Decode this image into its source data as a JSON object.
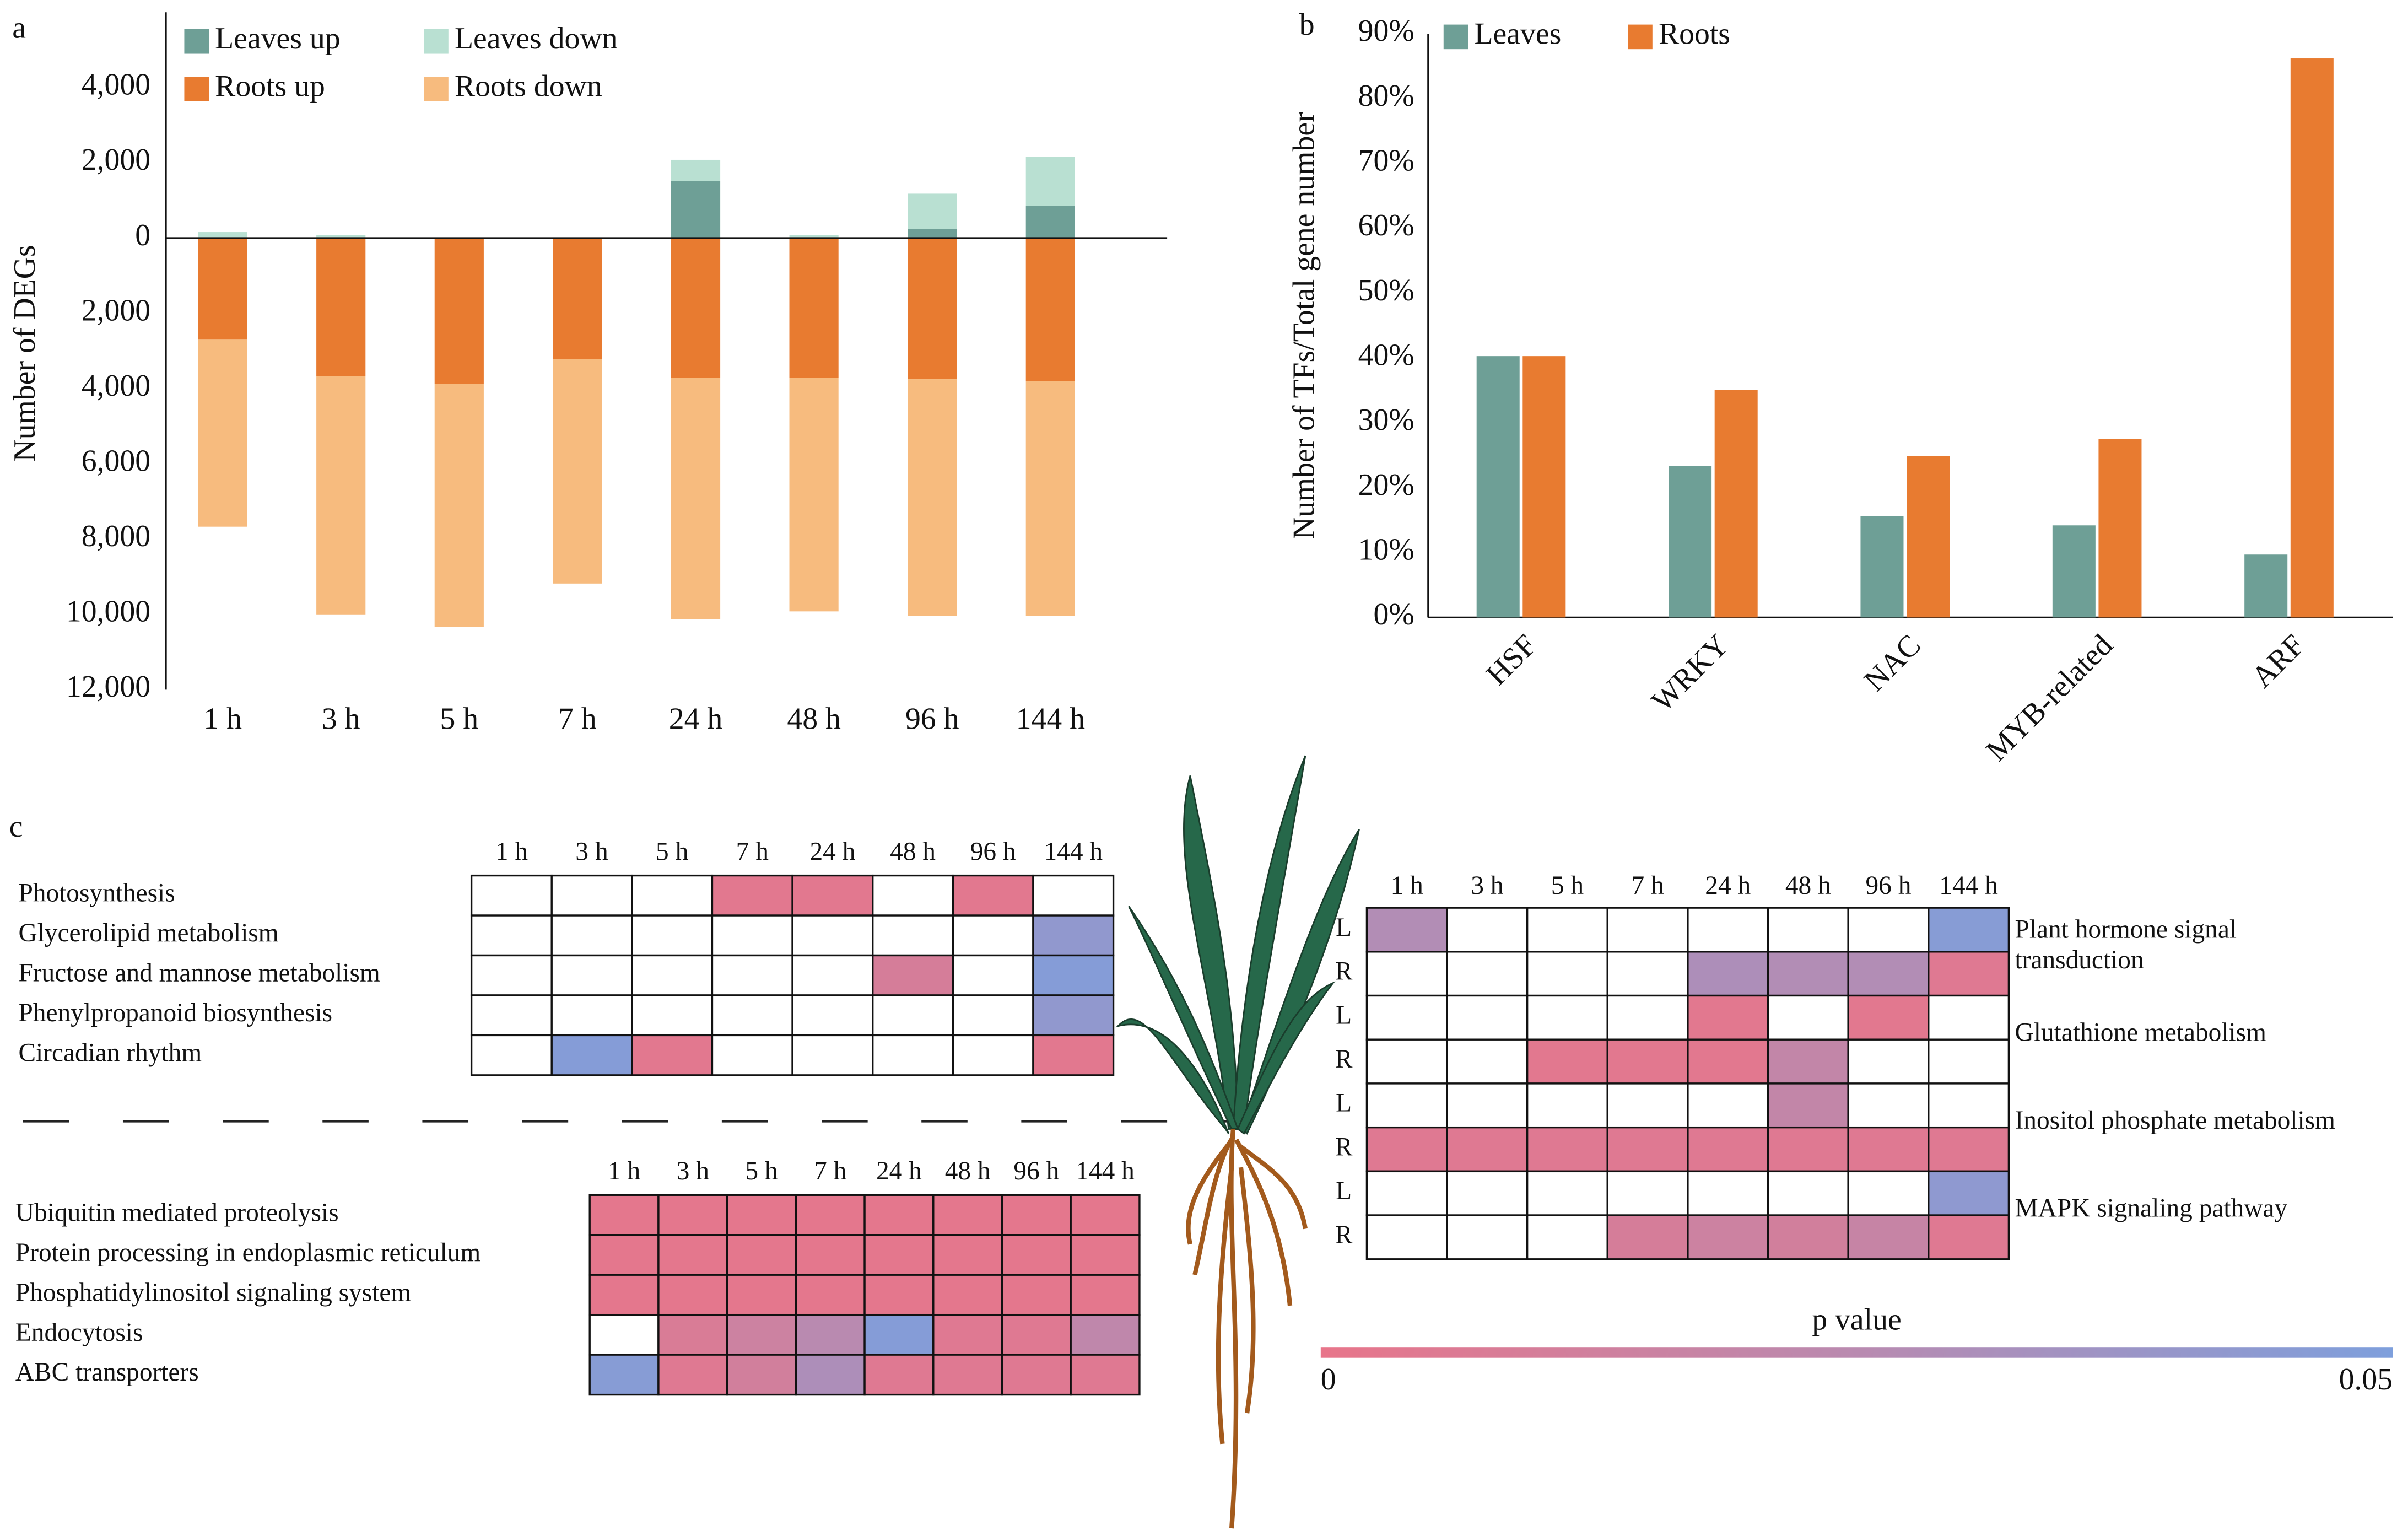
{
  "panel_labels": [
    "a",
    "b",
    "c"
  ],
  "chart_data": [
    {
      "type": "stacked-bar",
      "ylabel": "Number of DEGs",
      "categories": [
        "1 h",
        "3 h",
        "5 h",
        "7 h",
        "24 h",
        "48 h",
        "96 h",
        "144 h"
      ],
      "series": [
        {
          "name": "Leaves up",
          "color": "#6e9f96",
          "values": [
            0,
            0,
            0,
            0,
            1510,
            0,
            240,
            860
          ]
        },
        {
          "name": "Leaves down",
          "color": "#b9e0d2",
          "values": [
            160,
            80,
            0,
            0,
            570,
            80,
            940,
            1300
          ]
        },
        {
          "name": "Roots up",
          "color": "#e87b30",
          "values": [
            -2700,
            -3670,
            -3880,
            -3220,
            -3710,
            -3710,
            -3750,
            -3800
          ]
        },
        {
          "name": "Roots down",
          "color": "#f7bb7e",
          "values": [
            -4970,
            -6330,
            -6450,
            -5960,
            -6410,
            -6210,
            -6290,
            -6240
          ]
        }
      ],
      "ylim": [
        -12000,
        6000
      ],
      "yticks": [
        {
          "value": -12000,
          "label": "12,000"
        },
        {
          "value": -10000,
          "label": "10,000"
        },
        {
          "value": -8000,
          "label": "8,000"
        },
        {
          "value": -6000,
          "label": "6,000"
        },
        {
          "value": -4000,
          "label": "4,000"
        },
        {
          "value": -2000,
          "label": "2,000"
        },
        0,
        {
          "value": 2000,
          "label": "2,000"
        },
        {
          "value": 4000,
          "label": "4,000"
        }
      ]
    },
    {
      "type": "bar",
      "ylabel": "Number of TFs/Total gene number",
      "categories": [
        "HSF",
        "WRKY",
        "NAC",
        "MYB-related",
        "ARF"
      ],
      "series": [
        {
          "name": "Leaves",
          "color": "#6e9f96",
          "values": [
            40.3,
            23.4,
            15.6,
            14.2,
            9.7
          ]
        },
        {
          "name": "Roots",
          "color": "#e87b30",
          "values": [
            40.3,
            35.1,
            24.9,
            27.5,
            86.2
          ]
        }
      ],
      "ylim": [
        0,
        90
      ],
      "yticks": [
        {
          "value": 0,
          "label": "0%"
        },
        {
          "value": 10,
          "label": "10%"
        },
        {
          "value": 20,
          "label": "20%"
        },
        {
          "value": 30,
          "label": "30%"
        },
        {
          "value": 40,
          "label": "40%"
        },
        {
          "value": 50,
          "label": "50%"
        },
        {
          "value": 60,
          "label": "60%"
        },
        {
          "value": 70,
          "label": "70%"
        },
        {
          "value": 80,
          "label": "80%"
        },
        {
          "value": 90,
          "label": "90%"
        }
      ]
    },
    {
      "type": "heatmap",
      "categories": [
        "1 h",
        "3 h",
        "5 h",
        "7 h",
        "24 h",
        "48 h",
        "96 h",
        "144 h"
      ],
      "rows": [
        "Photosynthesis",
        "Glycerolipid metabolism",
        "Fructose and mannose metabolism",
        "Phenylpropanoid biosynthesis",
        "Circadian rhythm"
      ],
      "values": [
        [
          null,
          null,
          null,
          0.003,
          0.003,
          null,
          0.003,
          null
        ],
        [
          null,
          null,
          null,
          null,
          null,
          null,
          null,
          0.042
        ],
        [
          null,
          null,
          null,
          null,
          null,
          0.01,
          null,
          0.047
        ],
        [
          null,
          null,
          null,
          null,
          null,
          null,
          null,
          0.042
        ],
        [
          null,
          0.047,
          0.003,
          null,
          null,
          null,
          null,
          0.003
        ]
      ]
    },
    {
      "type": "heatmap",
      "categories": [
        "1 h",
        "3 h",
        "5 h",
        "7 h",
        "24 h",
        "48 h",
        "96 h",
        "144 h"
      ],
      "rows": [
        "Ubiquitin mediated proteolysis",
        "Protein processing in endoplasmic reticulum",
        "Phosphatidylinositol signaling system",
        "Endocytosis",
        "ABC transporters"
      ],
      "values": [
        [
          0.002,
          0.002,
          0.002,
          0.002,
          0.002,
          0.002,
          0.002,
          0.002
        ],
        [
          0.002,
          0.002,
          0.002,
          0.002,
          0.002,
          0.002,
          0.002,
          0.002
        ],
        [
          0.002,
          0.002,
          0.002,
          0.002,
          0.002,
          0.002,
          0.002,
          0.002
        ],
        [
          null,
          0.008,
          0.015,
          0.025,
          0.047,
          0.005,
          0.005,
          0.022
        ],
        [
          0.046,
          0.005,
          0.012,
          0.03,
          0.005,
          0.005,
          0.005,
          0.005
        ]
      ]
    },
    {
      "type": "heatmap",
      "categories": [
        "1 h",
        "3 h",
        "5 h",
        "7 h",
        "24 h",
        "48 h",
        "96 h",
        "144 h"
      ],
      "rows": [
        "L",
        "R",
        "L",
        "R",
        "L",
        "R",
        "L",
        "R"
      ],
      "pathways": [
        [
          "Plant hormone signal",
          "transduction"
        ],
        [
          "Glutathione metabolism"
        ],
        [
          "Inositol phosphate metabolism"
        ],
        [
          "MAPK signaling pathway"
        ]
      ],
      "values": [
        [
          0.028,
          null,
          null,
          null,
          null,
          null,
          null,
          0.046
        ],
        [
          null,
          null,
          null,
          null,
          0.03,
          0.028,
          0.028,
          0.005
        ],
        [
          null,
          null,
          null,
          null,
          0.003,
          null,
          0.003,
          null
        ],
        [
          null,
          null,
          0.003,
          0.003,
          0.003,
          0.02,
          null,
          null
        ],
        [
          null,
          null,
          null,
          null,
          null,
          0.02,
          null,
          null
        ],
        [
          0.005,
          0.005,
          0.005,
          0.005,
          0.005,
          0.005,
          0.005,
          0.005
        ],
        [
          null,
          null,
          null,
          null,
          null,
          null,
          null,
          0.043
        ],
        [
          null,
          null,
          null,
          0.01,
          0.015,
          0.012,
          0.018,
          0.005
        ]
      ]
    }
  ],
  "colorbar": {
    "label": "p value",
    "clim": [
      0,
      0.05
    ],
    "ticks": [
      0,
      0.05
    ],
    "colors": [
      "#e8758a",
      "#b98ab0",
      "#7e9fdc"
    ]
  }
}
